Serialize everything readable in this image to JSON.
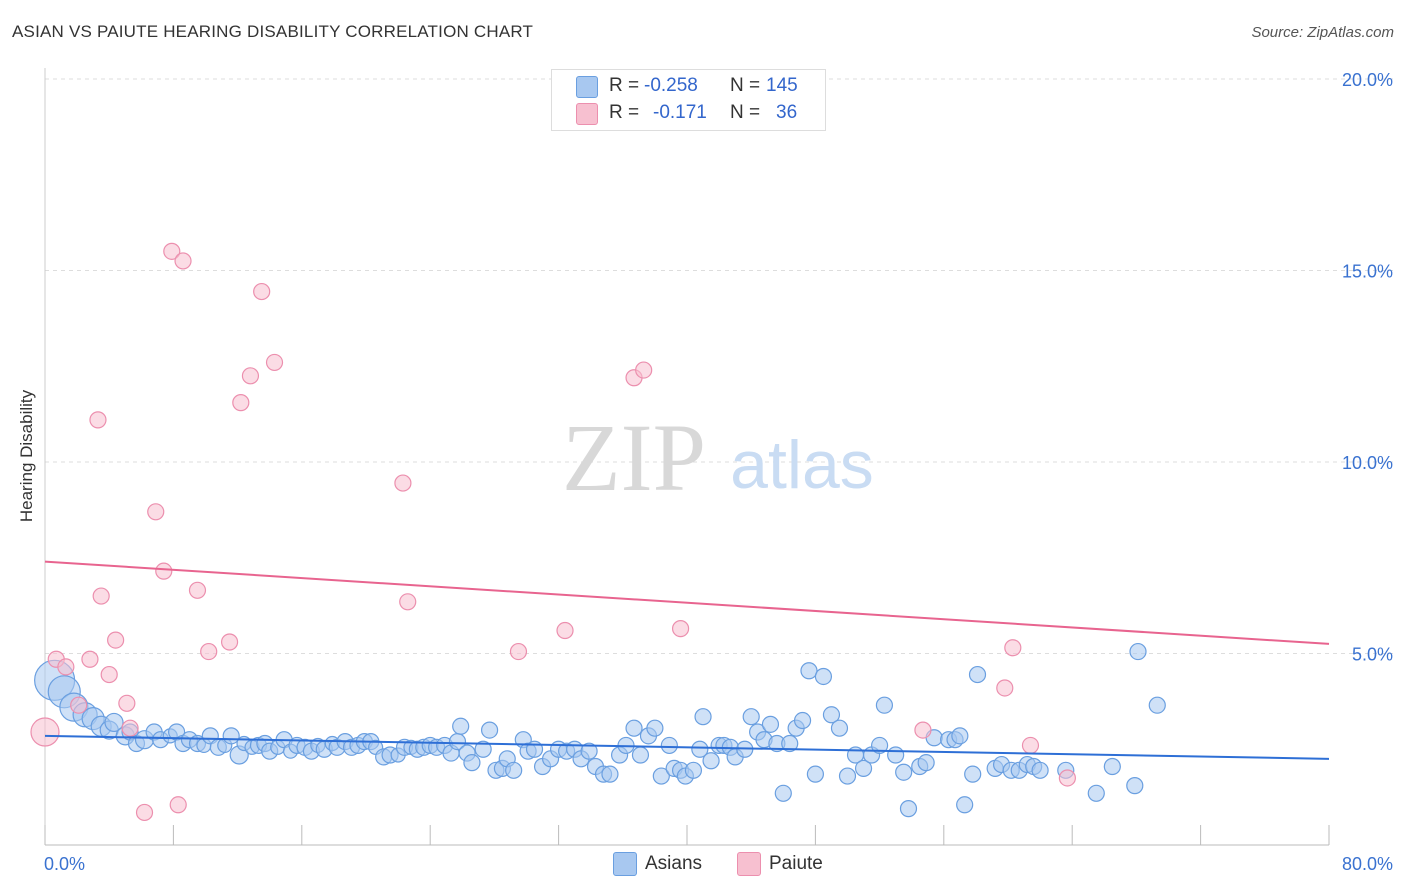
{
  "header": {
    "title": "ASIAN VS PAIUTE HEARING DISABILITY CORRELATION CHART",
    "source": "Source: ZipAtlas.com"
  },
  "watermark": {
    "zip": "ZIP",
    "atlas": "atlas"
  },
  "legend_top": {
    "rows": [
      {
        "r_label": "R =",
        "r_value": "-0.258",
        "n_label": "N =",
        "n_value": "145",
        "color": "#a8c8f0"
      },
      {
        "r_label": "R =",
        "r_value": "-0.171",
        "n_label": "N =",
        "n_value": "36",
        "color": "#f7c0d0"
      }
    ]
  },
  "legend_bottom": {
    "asians": "Asians",
    "paiute": "Paiute"
  },
  "colors": {
    "asians_fill": "#a8c8f0",
    "asians_stroke": "#6a9fe0",
    "asians_line": "#2e6fd6",
    "paiute_fill": "#f7c0d0",
    "paiute_stroke": "#ec8fae",
    "paiute_line": "#e8648f",
    "tick_label": "#3a72d0",
    "grid": "#dddddd"
  },
  "chart_data": {
    "type": "scatter",
    "ylabel": "Hearing Disability",
    "xlabel": "",
    "xlim": [
      0,
      80
    ],
    "ylim": [
      0,
      20.5
    ],
    "x_tick_labels": [
      "0.0%",
      "80.0%"
    ],
    "y_ticks": [
      5,
      10,
      15,
      20
    ],
    "y_tick_labels": [
      "5.0%",
      "10.0%",
      "15.0%",
      "20.0%"
    ],
    "grid": true,
    "legend_position": "top-center",
    "series": [
      {
        "name": "Asians",
        "trend": {
          "x": [
            0,
            80
          ],
          "y": [
            2.85,
            2.25
          ]
        },
        "points": [
          [
            0.6,
            4.3,
            20
          ],
          [
            1.2,
            4.0,
            16
          ],
          [
            1.8,
            3.6,
            14
          ],
          [
            2.5,
            3.4,
            12
          ],
          [
            3.0,
            3.3,
            11
          ],
          [
            3.5,
            3.1,
            10
          ],
          [
            4.0,
            3.0,
            9
          ],
          [
            4.3,
            3.2,
            9
          ],
          [
            5.0,
            2.85,
            9
          ],
          [
            5.3,
            2.95,
            8
          ],
          [
            5.7,
            2.65,
            8
          ],
          [
            6.2,
            2.75,
            9
          ],
          [
            6.8,
            2.95,
            8
          ],
          [
            7.2,
            2.75,
            8
          ],
          [
            7.8,
            2.85,
            7
          ],
          [
            8.2,
            2.95,
            8
          ],
          [
            8.6,
            2.65,
            8
          ],
          [
            9.0,
            2.75,
            8
          ],
          [
            9.5,
            2.65,
            8
          ],
          [
            9.9,
            2.6,
            7
          ],
          [
            10.3,
            2.85,
            8
          ],
          [
            10.8,
            2.55,
            8
          ],
          [
            11.2,
            2.6,
            7
          ],
          [
            11.6,
            2.85,
            8
          ],
          [
            12.1,
            2.35,
            9
          ],
          [
            12.4,
            2.65,
            7
          ],
          [
            12.9,
            2.55,
            7
          ],
          [
            13.3,
            2.6,
            8
          ],
          [
            13.7,
            2.65,
            8
          ],
          [
            14.0,
            2.45,
            8
          ],
          [
            14.5,
            2.55,
            7
          ],
          [
            14.9,
            2.75,
            8
          ],
          [
            15.3,
            2.45,
            7
          ],
          [
            15.7,
            2.6,
            8
          ],
          [
            16.2,
            2.55,
            8
          ],
          [
            16.6,
            2.45,
            8
          ],
          [
            17.0,
            2.6,
            7
          ],
          [
            17.4,
            2.5,
            8
          ],
          [
            17.9,
            2.65,
            7
          ],
          [
            18.2,
            2.55,
            8
          ],
          [
            18.7,
            2.7,
            8
          ],
          [
            19.1,
            2.55,
            8
          ],
          [
            19.5,
            2.6,
            8
          ],
          [
            19.9,
            2.7,
            8
          ],
          [
            20.3,
            2.7,
            8
          ],
          [
            20.6,
            2.55,
            7
          ],
          [
            21.1,
            2.3,
            8
          ],
          [
            21.5,
            2.35,
            8
          ],
          [
            22.0,
            2.35,
            7
          ],
          [
            22.4,
            2.55,
            8
          ],
          [
            22.8,
            2.55,
            7
          ],
          [
            23.2,
            2.5,
            8
          ],
          [
            23.6,
            2.55,
            8
          ],
          [
            24.0,
            2.6,
            8
          ],
          [
            24.4,
            2.55,
            8
          ],
          [
            24.9,
            2.6,
            8
          ],
          [
            25.3,
            2.4,
            8
          ],
          [
            25.7,
            2.7,
            8
          ],
          [
            25.9,
            3.1,
            8
          ],
          [
            26.3,
            2.4,
            8
          ],
          [
            26.6,
            2.15,
            8
          ],
          [
            27.3,
            2.5,
            8
          ],
          [
            27.7,
            3.0,
            8
          ],
          [
            28.1,
            1.95,
            8
          ],
          [
            28.5,
            2.0,
            8
          ],
          [
            28.8,
            2.25,
            8
          ],
          [
            29.2,
            1.95,
            8
          ],
          [
            29.8,
            2.75,
            8
          ],
          [
            30.1,
            2.45,
            8
          ],
          [
            30.5,
            2.5,
            8
          ],
          [
            31.0,
            2.05,
            8
          ],
          [
            31.5,
            2.25,
            8
          ],
          [
            32.0,
            2.5,
            8
          ],
          [
            32.5,
            2.45,
            8
          ],
          [
            33.0,
            2.5,
            8
          ],
          [
            33.4,
            2.25,
            8
          ],
          [
            33.9,
            2.45,
            8
          ],
          [
            34.3,
            2.05,
            8
          ],
          [
            34.8,
            1.85,
            8
          ],
          [
            35.2,
            1.85,
            8
          ],
          [
            35.8,
            2.35,
            8
          ],
          [
            36.2,
            2.6,
            8
          ],
          [
            36.7,
            3.05,
            8
          ],
          [
            37.1,
            2.35,
            8
          ],
          [
            37.6,
            2.85,
            8
          ],
          [
            38.0,
            3.05,
            8
          ],
          [
            38.4,
            1.8,
            8
          ],
          [
            38.9,
            2.6,
            8
          ],
          [
            39.2,
            2.0,
            8
          ],
          [
            39.6,
            1.95,
            8
          ],
          [
            39.9,
            1.8,
            8
          ],
          [
            40.4,
            1.95,
            8
          ],
          [
            40.8,
            2.5,
            8
          ],
          [
            41.0,
            3.35,
            8
          ],
          [
            41.5,
            2.2,
            8
          ],
          [
            42.0,
            2.6,
            8
          ],
          [
            42.3,
            2.6,
            8
          ],
          [
            42.7,
            2.55,
            8
          ],
          [
            43.0,
            2.3,
            8
          ],
          [
            43.6,
            2.5,
            8
          ],
          [
            44.0,
            3.35,
            8
          ],
          [
            44.4,
            2.95,
            8
          ],
          [
            44.8,
            2.75,
            8
          ],
          [
            45.2,
            3.15,
            8
          ],
          [
            45.6,
            2.65,
            8
          ],
          [
            46.0,
            1.35,
            8
          ],
          [
            46.4,
            2.65,
            8
          ],
          [
            46.8,
            3.05,
            8
          ],
          [
            47.2,
            3.25,
            8
          ],
          [
            47.6,
            4.55,
            8
          ],
          [
            48.0,
            1.85,
            8
          ],
          [
            48.5,
            4.4,
            8
          ],
          [
            49.0,
            3.4,
            8
          ],
          [
            49.5,
            3.05,
            8
          ],
          [
            50.0,
            1.8,
            8
          ],
          [
            50.5,
            2.35,
            8
          ],
          [
            51.0,
            2.0,
            8
          ],
          [
            51.5,
            2.35,
            8
          ],
          [
            52.0,
            2.6,
            8
          ],
          [
            52.3,
            3.65,
            8
          ],
          [
            53.0,
            2.35,
            8
          ],
          [
            53.5,
            1.9,
            8
          ],
          [
            53.8,
            0.95,
            8
          ],
          [
            54.5,
            2.05,
            8
          ],
          [
            54.9,
            2.15,
            8
          ],
          [
            55.4,
            2.8,
            8
          ],
          [
            56.3,
            2.75,
            8
          ],
          [
            56.7,
            2.75,
            8
          ],
          [
            57.0,
            2.85,
            8
          ],
          [
            57.3,
            1.05,
            8
          ],
          [
            57.8,
            1.85,
            8
          ],
          [
            58.1,
            4.45,
            8
          ],
          [
            59.2,
            2.0,
            8
          ],
          [
            59.6,
            2.1,
            8
          ],
          [
            60.2,
            1.95,
            8
          ],
          [
            60.7,
            1.95,
            8
          ],
          [
            61.2,
            2.1,
            8
          ],
          [
            61.6,
            2.05,
            8
          ],
          [
            62.0,
            1.95,
            8
          ],
          [
            63.6,
            1.95,
            8
          ],
          [
            65.5,
            1.35,
            8
          ],
          [
            66.5,
            2.05,
            8
          ],
          [
            67.9,
            1.55,
            8
          ],
          [
            68.1,
            5.05,
            8
          ],
          [
            69.3,
            3.65,
            8
          ]
        ]
      },
      {
        "name": "Paiute",
        "trend": {
          "x": [
            0,
            80
          ],
          "y": [
            7.4,
            5.25
          ]
        },
        "points": [
          [
            0.0,
            2.95,
            14
          ],
          [
            0.7,
            4.85,
            8
          ],
          [
            1.3,
            4.65,
            8
          ],
          [
            2.1,
            3.65,
            8
          ],
          [
            2.8,
            4.85,
            8
          ],
          [
            3.3,
            11.1,
            8
          ],
          [
            3.5,
            6.5,
            8
          ],
          [
            4.0,
            4.45,
            8
          ],
          [
            4.4,
            5.35,
            8
          ],
          [
            5.1,
            3.7,
            8
          ],
          [
            5.3,
            3.05,
            8
          ],
          [
            6.2,
            0.85,
            8
          ],
          [
            6.9,
            8.7,
            8
          ],
          [
            7.4,
            7.15,
            8
          ],
          [
            7.9,
            15.5,
            8
          ],
          [
            8.3,
            1.05,
            8
          ],
          [
            8.6,
            15.25,
            8
          ],
          [
            9.5,
            6.65,
            8
          ],
          [
            10.2,
            5.05,
            8
          ],
          [
            11.5,
            5.3,
            8
          ],
          [
            12.2,
            11.55,
            8
          ],
          [
            12.8,
            12.25,
            8
          ],
          [
            13.5,
            14.45,
            8
          ],
          [
            14.3,
            12.6,
            8
          ],
          [
            22.3,
            9.45,
            8
          ],
          [
            22.6,
            6.35,
            8
          ],
          [
            29.5,
            5.05,
            8
          ],
          [
            32.4,
            5.6,
            8
          ],
          [
            36.7,
            12.2,
            8
          ],
          [
            37.3,
            12.4,
            8
          ],
          [
            39.6,
            5.65,
            8
          ],
          [
            54.7,
            3.0,
            8
          ],
          [
            59.8,
            4.1,
            8
          ],
          [
            60.3,
            5.15,
            8
          ],
          [
            61.4,
            2.6,
            8
          ],
          [
            63.7,
            1.75,
            8
          ]
        ]
      }
    ]
  }
}
